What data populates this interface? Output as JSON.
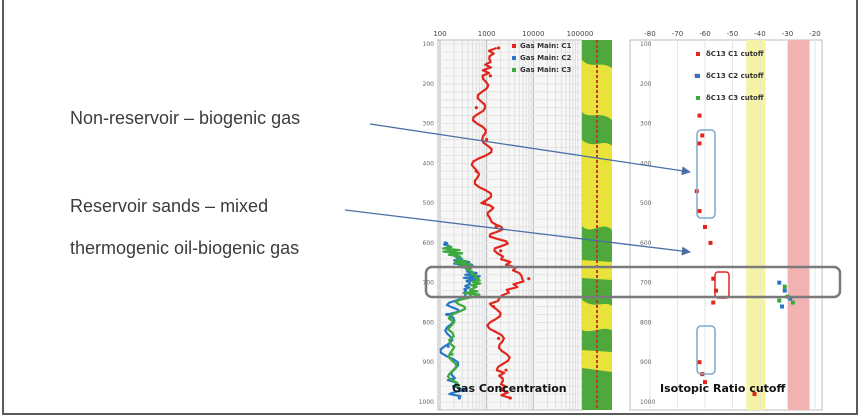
{
  "annotations": {
    "non_reservoir": "Non-reservoir – biogenic gas",
    "reservoir_line1": "Reservoir sands – mixed",
    "reservoir_line2": "thermogenic oil-biogenic gas"
  },
  "chart_data": [
    {
      "type": "line",
      "title": "Gas Concentration",
      "x_scale": "log",
      "x_ticks": [
        "100",
        "1000",
        "10000",
        "100000"
      ],
      "y_ticks": [
        "100",
        "200",
        "300",
        "400",
        "500",
        "600",
        "700",
        "800",
        "900",
        "1000"
      ],
      "legend": [
        "Gas Main: C1",
        "Gas Main: C2",
        "Gas Main: C3"
      ],
      "legend_placement": "top-right",
      "series": [
        {
          "name": "Gas Main: C1",
          "color": "#e0261d",
          "values": [
            {
              "depth": 110,
              "conc": 1800
            },
            {
              "depth": 180,
              "conc": 1200
            },
            {
              "depth": 260,
              "conc": 600
            },
            {
              "depth": 340,
              "conc": 1000
            },
            {
              "depth": 420,
              "conc": 600
            },
            {
              "depth": 500,
              "conc": 900
            },
            {
              "depth": 560,
              "conc": 1600
            },
            {
              "depth": 620,
              "conc": 2000
            },
            {
              "depth": 690,
              "conc": 8000
            },
            {
              "depth": 760,
              "conc": 1400
            },
            {
              "depth": 840,
              "conc": 1800
            },
            {
              "depth": 920,
              "conc": 2600
            },
            {
              "depth": 990,
              "conc": 3200
            }
          ]
        },
        {
          "name": "Gas Main: C2",
          "color": "#2a78c5",
          "values": [
            {
              "depth": 600,
              "conc": 130
            },
            {
              "depth": 640,
              "conc": 250
            },
            {
              "depth": 680,
              "conc": 500
            },
            {
              "depth": 720,
              "conc": 350
            },
            {
              "depth": 780,
              "conc": 140
            },
            {
              "depth": 860,
              "conc": 150
            },
            {
              "depth": 940,
              "conc": 200
            },
            {
              "depth": 990,
              "conc": 260
            }
          ]
        },
        {
          "name": "Gas Main: C3",
          "color": "#3caa3c",
          "values": [
            {
              "depth": 610,
              "conc": 150
            },
            {
              "depth": 650,
              "conc": 300
            },
            {
              "depth": 690,
              "conc": 650
            },
            {
              "depth": 730,
              "conc": 450
            },
            {
              "depth": 790,
              "conc": 170
            },
            {
              "depth": 880,
              "conc": 180
            },
            {
              "depth": 960,
              "conc": 240
            }
          ]
        }
      ]
    },
    {
      "type": "scatter",
      "title": "Isotopic Ratio cutoff",
      "x_ticks": [
        "-80",
        "-70",
        "-60",
        "-50",
        "-40",
        "-30",
        "-20"
      ],
      "xlim": [
        -80,
        -20
      ],
      "legend": [
        "δC13 C1 cutoff",
        "δC13 C2 cutoff",
        "δC13 C3 cutoff"
      ],
      "legend_placement": "top-right",
      "bands": [
        {
          "from": -45,
          "to": -38,
          "color": "#f6f2a6"
        },
        {
          "from": -30,
          "to": -22,
          "color": "#f2b2b2"
        }
      ],
      "series": [
        {
          "name": "δC13 C1 cutoff",
          "color": "#e0261d",
          "values": [
            {
              "x": -63,
              "y": 180
            },
            {
              "x": -62,
              "y": 280
            },
            {
              "x": -61,
              "y": 330
            },
            {
              "x": -62,
              "y": 350
            },
            {
              "x": -63,
              "y": 470
            },
            {
              "x": -62,
              "y": 520
            },
            {
              "x": -60,
              "y": 560
            },
            {
              "x": -58,
              "y": 600
            },
            {
              "x": -57,
              "y": 690
            },
            {
              "x": -56,
              "y": 720
            },
            {
              "x": -57,
              "y": 750
            },
            {
              "x": -62,
              "y": 900
            },
            {
              "x": -61,
              "y": 930
            },
            {
              "x": -60,
              "y": 950
            },
            {
              "x": -42,
              "y": 980
            }
          ]
        },
        {
          "name": "δC13 C2 cutoff",
          "color": "#2a78c5",
          "values": [
            {
              "x": -33,
              "y": 700
            },
            {
              "x": -31,
              "y": 720
            },
            {
              "x": -29,
              "y": 740
            },
            {
              "x": -32,
              "y": 760
            }
          ]
        },
        {
          "name": "δC13 C3 cutoff",
          "color": "#3caa3c",
          "values": [
            {
              "x": -31,
              "y": 710
            },
            {
              "x": -30,
              "y": 735
            },
            {
              "x": -28,
              "y": 750
            },
            {
              "x": -33,
              "y": 745
            }
          ]
        }
      ]
    }
  ]
}
